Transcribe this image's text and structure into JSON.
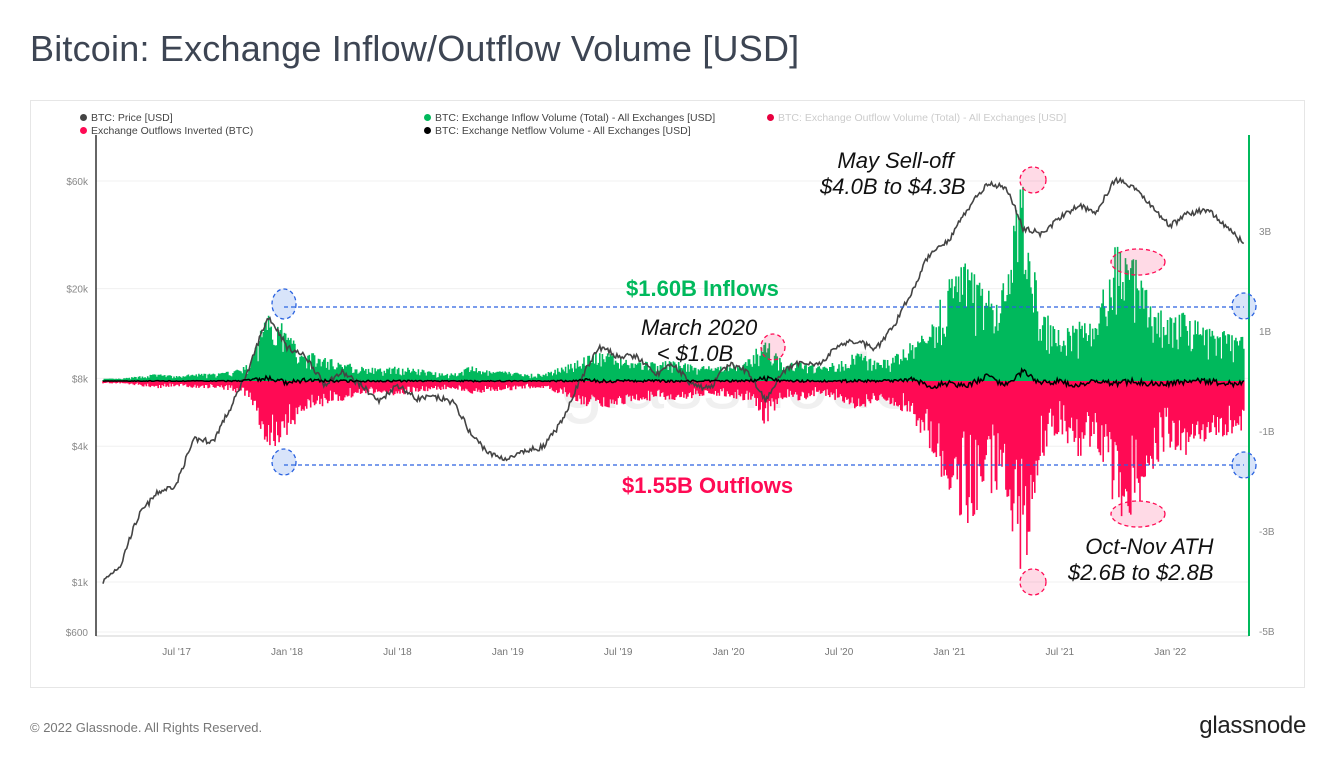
{
  "title": "Bitcoin: Exchange Inflow/Outflow Volume [USD]",
  "footer": "© 2022 Glassnode. All Rights Reserved.",
  "logo": "glassnode",
  "watermark": "glassnode",
  "legend": [
    {
      "label": "BTC: Price [USD]",
      "color": "#444444"
    },
    {
      "label": "BTC: Exchange Inflow Volume (Total) - All Exchanges [USD]",
      "color": "#00b95c"
    },
    {
      "label": "BTC: Exchange Outflow Volume (Total) - All Exchanges [USD]",
      "color": "#e8003f",
      "disabled": true
    },
    {
      "label": "Exchange Outflows Inverted (BTC)",
      "color": "#ff0a54"
    },
    {
      "label": "BTC: Exchange Netflow Volume - All Exchanges [USD]",
      "color": "#000000"
    }
  ],
  "annotations": {
    "inflows": "$1.60B Inflows",
    "outflows": "$1.55B Outflows",
    "may_line1": "May Sell-off",
    "may_line2": "$4.0B to $4.3B",
    "march_line1": "March 2020",
    "march_line2": "< $1.0B",
    "ath_line1": "Oct-Nov ATH",
    "ath_line2": "$2.6B to $2.8B"
  },
  "colors": {
    "inflow": "#00b95c",
    "outflow": "#ff0a54",
    "price": "#444444",
    "netflow": "#000000",
    "right_axis": "#00b95c",
    "guide": "#2a62e0"
  },
  "chart_data": {
    "type": "area",
    "x_ticks": [
      "Jul '17",
      "Jan '18",
      "Jul '18",
      "Jan '19",
      "Jul '19",
      "Jan '20",
      "Jul '20",
      "Jan '21",
      "Jul '21",
      "Jan '22"
    ],
    "y_left": {
      "scale": "log",
      "ticks": [
        "$600",
        "$1k",
        "$4k",
        "$8k",
        "$20k",
        "$60k"
      ],
      "tick_values": [
        600,
        1000,
        4000,
        8000,
        20000,
        60000
      ],
      "range": [
        600,
        110000
      ]
    },
    "y_right": {
      "scale": "linear",
      "ticks": [
        "3B",
        "1B",
        "-1B",
        "-3B",
        "-5B"
      ],
      "tick_values": [
        3,
        1,
        -1,
        -3,
        -5
      ],
      "range": [
        -5,
        5
      ],
      "unit": "B USD"
    },
    "grid": true,
    "legend_position": "top",
    "months": [
      "2017-03",
      "2017-04",
      "2017-05",
      "2017-06",
      "2017-07",
      "2017-08",
      "2017-09",
      "2017-10",
      "2017-11",
      "2017-12",
      "2018-01",
      "2018-02",
      "2018-03",
      "2018-04",
      "2018-05",
      "2018-06",
      "2018-07",
      "2018-08",
      "2018-09",
      "2018-10",
      "2018-11",
      "2018-12",
      "2019-01",
      "2019-02",
      "2019-03",
      "2019-04",
      "2019-05",
      "2019-06",
      "2019-07",
      "2019-08",
      "2019-09",
      "2019-10",
      "2019-11",
      "2019-12",
      "2020-01",
      "2020-02",
      "2020-03",
      "2020-04",
      "2020-05",
      "2020-06",
      "2020-07",
      "2020-08",
      "2020-09",
      "2020-10",
      "2020-11",
      "2020-12",
      "2021-01",
      "2021-02",
      "2021-03",
      "2021-04",
      "2021-05",
      "2021-06",
      "2021-07",
      "2021-08",
      "2021-09",
      "2021-10",
      "2021-11",
      "2021-12",
      "2022-01",
      "2022-02",
      "2022-03",
      "2022-04",
      "2022-05"
    ],
    "series": [
      {
        "name": "BTC: Price [USD]",
        "values": [
          1000,
          1200,
          2000,
          2500,
          2700,
          4300,
          4200,
          6000,
          9000,
          15000,
          11000,
          10000,
          7500,
          8500,
          7500,
          6300,
          7500,
          6500,
          6600,
          6300,
          4500,
          3700,
          3500,
          3800,
          4000,
          5200,
          8000,
          11000,
          10000,
          10000,
          8300,
          9200,
          7500,
          7200,
          9300,
          8600,
          6400,
          8600,
          9500,
          9200,
          11300,
          11700,
          10700,
          13700,
          19500,
          29000,
          33000,
          45000,
          58000,
          57000,
          37000,
          35000,
          41000,
          47000,
          43000,
          61000,
          57000,
          46000,
          38000,
          43000,
          45000,
          38000,
          31500
        ]
      },
      {
        "name": "BTC: Exchange Inflow Volume (Total) - All Exchanges [USD]",
        "values": [
          0.05,
          0.05,
          0.1,
          0.15,
          0.1,
          0.15,
          0.15,
          0.2,
          0.35,
          1.6,
          1.0,
          0.6,
          0.5,
          0.4,
          0.3,
          0.25,
          0.3,
          0.25,
          0.2,
          0.15,
          0.3,
          0.2,
          0.2,
          0.15,
          0.15,
          0.3,
          0.5,
          0.6,
          0.5,
          0.4,
          0.4,
          0.4,
          0.35,
          0.3,
          0.35,
          0.4,
          0.9,
          0.35,
          0.4,
          0.3,
          0.4,
          0.6,
          0.4,
          0.5,
          0.8,
          1.2,
          2.2,
          2.4,
          1.8,
          2.0,
          4.3,
          1.5,
          1.0,
          1.2,
          1.3,
          2.8,
          2.6,
          1.6,
          1.3,
          1.4,
          1.1,
          1.0,
          0.9
        ]
      },
      {
        "name": "Exchange Outflows Inverted (BTC)",
        "values": [
          -0.05,
          -0.05,
          -0.1,
          -0.15,
          -0.1,
          -0.15,
          -0.15,
          -0.2,
          -0.35,
          -1.55,
          -1.1,
          -0.6,
          -0.5,
          -0.4,
          -0.3,
          -0.25,
          -0.3,
          -0.25,
          -0.2,
          -0.15,
          -0.3,
          -0.2,
          -0.2,
          -0.15,
          -0.15,
          -0.3,
          -0.5,
          -0.6,
          -0.5,
          -0.4,
          -0.4,
          -0.4,
          -0.35,
          -0.3,
          -0.35,
          -0.4,
          -0.9,
          -0.35,
          -0.4,
          -0.3,
          -0.4,
          -0.6,
          -0.4,
          -0.5,
          -0.8,
          -1.4,
          -2.4,
          -3.0,
          -2.2,
          -2.4,
          -4.0,
          -1.6,
          -1.0,
          -1.6,
          -1.3,
          -2.7,
          -2.8,
          -1.8,
          -1.4,
          -1.5,
          -1.2,
          -1.1,
          -1.0
        ]
      },
      {
        "name": "BTC: Exchange Netflow Volume - All Exchanges [USD]",
        "values": [
          0,
          0,
          0,
          0,
          0,
          0,
          0,
          0,
          0.02,
          0.05,
          -0.05,
          0.02,
          0,
          0,
          0,
          0,
          0,
          0,
          0,
          0,
          0,
          0,
          0,
          0,
          0,
          0,
          0.02,
          0,
          0,
          0,
          0,
          0,
          0,
          0,
          0,
          0,
          0.05,
          0,
          0,
          0,
          0,
          0,
          0,
          0,
          0.05,
          -0.1,
          -0.05,
          -0.1,
          0.1,
          -0.1,
          0.2,
          -0.05,
          0,
          -0.1,
          0,
          -0.05,
          0,
          -0.05,
          -0.05,
          0,
          0,
          -0.05,
          -0.05
        ]
      }
    ]
  }
}
